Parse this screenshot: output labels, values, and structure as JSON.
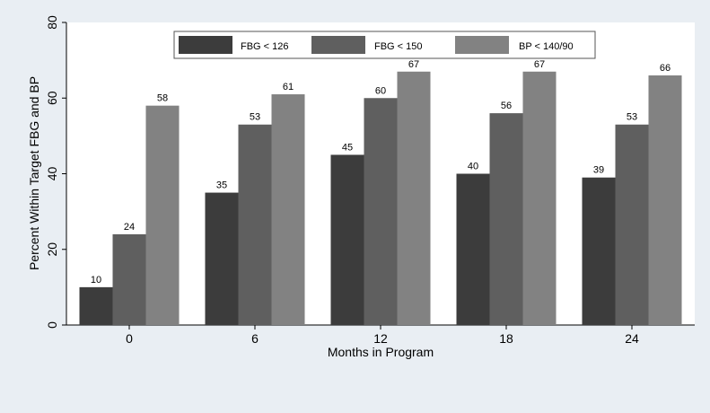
{
  "chart_data": {
    "type": "bar",
    "title": "",
    "xlabel": "Months in Program",
    "ylabel": "Percent Within Target FBG and BP",
    "ylim": [
      0,
      80
    ],
    "yticks": [
      0,
      20,
      40,
      60,
      80
    ],
    "categories": [
      "0",
      "6",
      "12",
      "18",
      "24"
    ],
    "legend_position": "top",
    "grid": false,
    "series": [
      {
        "name": "FBG < 126",
        "color": "#3c3c3c",
        "values": [
          10,
          35,
          45,
          40,
          39
        ]
      },
      {
        "name": "FBG < 150",
        "color": "#5f5f5f",
        "values": [
          24,
          53,
          60,
          56,
          53
        ]
      },
      {
        "name": "BP < 140/90",
        "color": "#828282",
        "values": [
          58,
          61,
          67,
          67,
          66
        ]
      }
    ],
    "background_color": "#e9eef3",
    "plot_background_color": "#ffffff"
  }
}
